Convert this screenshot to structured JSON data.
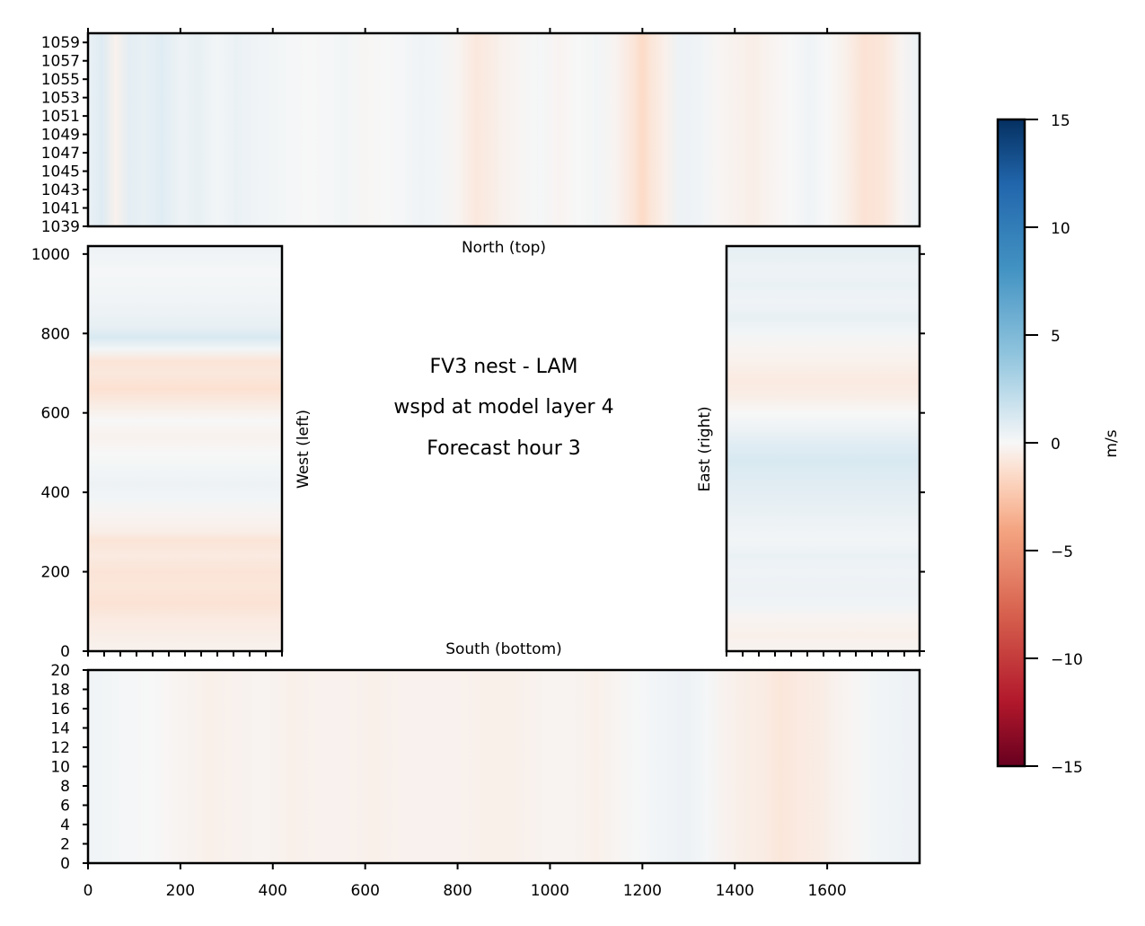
{
  "chart_data": {
    "type": "heatmap",
    "title": [
      "FV3 nest - LAM",
      "wspd at model layer 4",
      "Forecast hour 3"
    ],
    "colormap": "RdBu",
    "vmin": -15,
    "vmax": 15,
    "colorbar": {
      "label": "m/s",
      "ticks": [
        15,
        10,
        5,
        0,
        -5,
        -10,
        -15
      ],
      "tick_labels": [
        "15",
        "10",
        "5",
        "0",
        "−5",
        "−10",
        "−15"
      ]
    },
    "panels": [
      {
        "name": "North (top)",
        "xlim": [
          0,
          1800
        ],
        "ylim": [
          1039,
          1060
        ],
        "yticks": [
          1039,
          1041,
          1043,
          1045,
          1047,
          1049,
          1051,
          1053,
          1055,
          1057,
          1059
        ],
        "xticks": [
          0,
          200,
          400,
          600,
          800,
          1000,
          1200,
          1400,
          1600
        ],
        "orientation": "columns",
        "samples": [
          [
            0,
            0.5
          ],
          [
            30,
            1.0
          ],
          [
            60,
            -0.3
          ],
          [
            90,
            0.8
          ],
          [
            120,
            0.6
          ],
          [
            160,
            0.9
          ],
          [
            200,
            0.4
          ],
          [
            240,
            0.6
          ],
          [
            280,
            0.2
          ],
          [
            320,
            0.5
          ],
          [
            360,
            0.3
          ],
          [
            400,
            0.2
          ],
          [
            440,
            0.1
          ],
          [
            480,
            0
          ],
          [
            520,
            0.1
          ],
          [
            560,
            0.2
          ],
          [
            600,
            -0.1
          ],
          [
            640,
            0
          ],
          [
            680,
            0.1
          ],
          [
            720,
            0.3
          ],
          [
            760,
            0.2
          ],
          [
            800,
            -0.2
          ],
          [
            840,
            -0.8
          ],
          [
            870,
            -0.6
          ],
          [
            900,
            -0.3
          ],
          [
            940,
            -0.1
          ],
          [
            980,
            0.1
          ],
          [
            1020,
            -0.2
          ],
          [
            1060,
            0
          ],
          [
            1100,
            0.2
          ],
          [
            1140,
            -0.2
          ],
          [
            1180,
            -0.9
          ],
          [
            1200,
            -1.5
          ],
          [
            1220,
            -0.9
          ],
          [
            1250,
            -0.4
          ],
          [
            1280,
            0.4
          ],
          [
            1320,
            0.3
          ],
          [
            1360,
            -0.1
          ],
          [
            1400,
            -0.3
          ],
          [
            1440,
            -0.5
          ],
          [
            1480,
            -0.2
          ],
          [
            1520,
            0
          ],
          [
            1560,
            0.3
          ],
          [
            1600,
            0
          ],
          [
            1640,
            -0.4
          ],
          [
            1680,
            -1.1
          ],
          [
            1720,
            -0.9
          ],
          [
            1760,
            -0.2
          ],
          [
            1800,
            0.5
          ]
        ]
      },
      {
        "name": "West (left)",
        "xlim": [
          0,
          420
        ],
        "ylim": [
          0,
          1020
        ],
        "yticks": [
          0,
          200,
          400,
          600,
          800,
          1000
        ],
        "orientation": "rows",
        "samples": [
          [
            0,
            -0.3
          ],
          [
            40,
            -0.5
          ],
          [
            80,
            -0.7
          ],
          [
            120,
            -1.1
          ],
          [
            160,
            -0.9
          ],
          [
            200,
            -1.0
          ],
          [
            240,
            -0.7
          ],
          [
            280,
            -1.0
          ],
          [
            300,
            -0.5
          ],
          [
            340,
            -0.2
          ],
          [
            380,
            0.2
          ],
          [
            420,
            0.4
          ],
          [
            460,
            0.2
          ],
          [
            500,
            0
          ],
          [
            540,
            -0.3
          ],
          [
            580,
            0
          ],
          [
            620,
            -0.6
          ],
          [
            660,
            -1.2
          ],
          [
            700,
            -0.8
          ],
          [
            730,
            -1.0
          ],
          [
            760,
            0.2
          ],
          [
            790,
            1.2
          ],
          [
            820,
            0.6
          ],
          [
            860,
            0.4
          ],
          [
            900,
            0.2
          ],
          [
            960,
            0.1
          ],
          [
            1020,
            0.4
          ]
        ]
      },
      {
        "name": "East (right)",
        "xlim": [
          0,
          420
        ],
        "ylim": [
          0,
          1020
        ],
        "orientation": "rows",
        "samples": [
          [
            0,
            -0.2
          ],
          [
            40,
            -0.4
          ],
          [
            80,
            -0.2
          ],
          [
            120,
            0.3
          ],
          [
            160,
            0.4
          ],
          [
            200,
            0.3
          ],
          [
            240,
            0.5
          ],
          [
            280,
            0.2
          ],
          [
            320,
            0.4
          ],
          [
            360,
            0.6
          ],
          [
            400,
            0.8
          ],
          [
            440,
            1.0
          ],
          [
            480,
            1.2
          ],
          [
            520,
            0.9
          ],
          [
            560,
            0.4
          ],
          [
            600,
            0
          ],
          [
            640,
            -0.5
          ],
          [
            680,
            -0.7
          ],
          [
            720,
            -0.4
          ],
          [
            760,
            -0.2
          ],
          [
            800,
            0.2
          ],
          [
            840,
            0.6
          ],
          [
            880,
            0.3
          ],
          [
            920,
            0.5
          ],
          [
            960,
            0.4
          ],
          [
            1020,
            0.7
          ]
        ]
      },
      {
        "name": "South (bottom)",
        "xlim": [
          0,
          1800
        ],
        "ylim": [
          0,
          20
        ],
        "yticks": [
          0,
          2,
          4,
          6,
          8,
          10,
          12,
          14,
          16,
          18,
          20
        ],
        "xticks": [
          0,
          200,
          400,
          600,
          800,
          1000,
          1200,
          1400,
          1600
        ],
        "orientation": "columns",
        "samples": [
          [
            0,
            0.3
          ],
          [
            40,
            0.2
          ],
          [
            80,
            0.1
          ],
          [
            140,
            0
          ],
          [
            200,
            -0.2
          ],
          [
            260,
            -0.4
          ],
          [
            320,
            -0.3
          ],
          [
            380,
            -0.2
          ],
          [
            440,
            -0.4
          ],
          [
            500,
            -0.3
          ],
          [
            560,
            -0.3
          ],
          [
            620,
            -0.4
          ],
          [
            680,
            -0.3
          ],
          [
            740,
            -0.3
          ],
          [
            800,
            -0.3
          ],
          [
            860,
            -0.4
          ],
          [
            920,
            -0.4
          ],
          [
            960,
            -0.3
          ],
          [
            1000,
            -0.2
          ],
          [
            1040,
            -0.2
          ],
          [
            1100,
            -0.4
          ],
          [
            1160,
            -0.1
          ],
          [
            1200,
            0.1
          ],
          [
            1260,
            0.3
          ],
          [
            1300,
            0.4
          ],
          [
            1340,
            0.1
          ],
          [
            1380,
            -0.3
          ],
          [
            1420,
            -0.5
          ],
          [
            1460,
            -0.6
          ],
          [
            1500,
            -0.9
          ],
          [
            1540,
            -0.7
          ],
          [
            1580,
            -0.6
          ],
          [
            1620,
            -0.3
          ],
          [
            1660,
            -0.1
          ],
          [
            1700,
            0.2
          ],
          [
            1740,
            0.3
          ],
          [
            1800,
            0.4
          ]
        ]
      }
    ]
  }
}
